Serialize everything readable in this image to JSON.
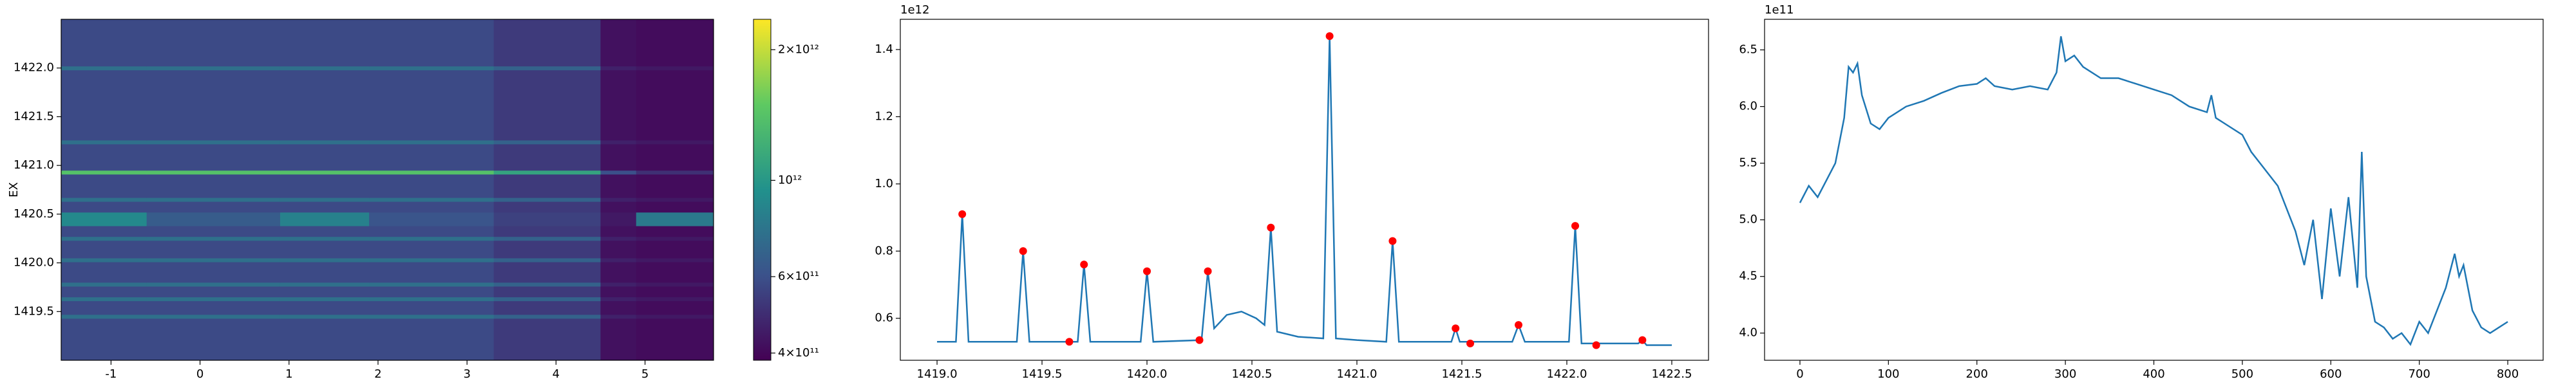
{
  "chart_data": [
    {
      "type": "heatmap",
      "ylabel": "EX",
      "x_edges": [
        -1.56,
        -0.6,
        0.9,
        1.9,
        3.3,
        4.5,
        4.9,
        5.77
      ],
      "y_edges": [
        1419.0,
        1419.43,
        1419.47,
        1419.61,
        1419.65,
        1419.76,
        1419.8,
        1420.01,
        1420.05,
        1420.23,
        1420.27,
        1420.38,
        1420.52,
        1420.63,
        1420.67,
        1420.91,
        1420.95,
        1421.22,
        1421.26,
        1421.98,
        1422.02,
        1422.5
      ],
      "values": [
        [
          580000000000.0,
          580000000000.0,
          580000000000.0,
          580000000000.0,
          530000000000.0,
          420000000000.0,
          410000000000.0
        ],
        [
          750000000000.0,
          750000000000.0,
          750000000000.0,
          750000000000.0,
          680000000000.0,
          460000000000.0,
          440000000000.0
        ],
        [
          580000000000.0,
          580000000000.0,
          580000000000.0,
          580000000000.0,
          530000000000.0,
          420000000000.0,
          410000000000.0
        ],
        [
          750000000000.0,
          750000000000.0,
          750000000000.0,
          750000000000.0,
          680000000000.0,
          460000000000.0,
          440000000000.0
        ],
        [
          580000000000.0,
          580000000000.0,
          580000000000.0,
          580000000000.0,
          530000000000.0,
          420000000000.0,
          410000000000.0
        ],
        [
          750000000000.0,
          750000000000.0,
          750000000000.0,
          750000000000.0,
          680000000000.0,
          460000000000.0,
          440000000000.0
        ],
        [
          580000000000.0,
          580000000000.0,
          580000000000.0,
          580000000000.0,
          530000000000.0,
          420000000000.0,
          410000000000.0
        ],
        [
          750000000000.0,
          750000000000.0,
          750000000000.0,
          750000000000.0,
          680000000000.0,
          460000000000.0,
          440000000000.0
        ],
        [
          580000000000.0,
          580000000000.0,
          580000000000.0,
          580000000000.0,
          530000000000.0,
          420000000000.0,
          410000000000.0
        ],
        [
          750000000000.0,
          750000000000.0,
          750000000000.0,
          750000000000.0,
          680000000000.0,
          460000000000.0,
          440000000000.0
        ],
        [
          580000000000.0,
          580000000000.0,
          580000000000.0,
          580000000000.0,
          530000000000.0,
          420000000000.0,
          410000000000.0
        ],
        [
          900000000000.0,
          650000000000.0,
          850000000000.0,
          620000000000.0,
          550000000000.0,
          440000000000.0,
          800000000000.0
        ],
        [
          580000000000.0,
          580000000000.0,
          580000000000.0,
          580000000000.0,
          530000000000.0,
          420000000000.0,
          410000000000.0
        ],
        [
          750000000000.0,
          750000000000.0,
          750000000000.0,
          750000000000.0,
          680000000000.0,
          460000000000.0,
          440000000000.0
        ],
        [
          580000000000.0,
          580000000000.0,
          580000000000.0,
          580000000000.0,
          530000000000.0,
          420000000000.0,
          410000000000.0
        ],
        [
          1400000000000.0,
          1400000000000.0,
          1400000000000.0,
          1400000000000.0,
          1100000000000.0,
          600000000000.0,
          500000000000.0
        ],
        [
          580000000000.0,
          580000000000.0,
          580000000000.0,
          580000000000.0,
          530000000000.0,
          420000000000.0,
          410000000000.0
        ],
        [
          750000000000.0,
          750000000000.0,
          750000000000.0,
          750000000000.0,
          680000000000.0,
          460000000000.0,
          440000000000.0
        ],
        [
          580000000000.0,
          580000000000.0,
          580000000000.0,
          580000000000.0,
          530000000000.0,
          420000000000.0,
          410000000000.0
        ],
        [
          750000000000.0,
          750000000000.0,
          750000000000.0,
          750000000000.0,
          680000000000.0,
          460000000000.0,
          440000000000.0
        ],
        [
          580000000000.0,
          580000000000.0,
          580000000000.0,
          580000000000.0,
          530000000000.0,
          420000000000.0,
          410000000000.0
        ]
      ],
      "colormap": "viridis",
      "xlim": [
        -1.56,
        5.77
      ],
      "xticks": [
        -1,
        0,
        1,
        2,
        3,
        4,
        5
      ],
      "ylim": [
        1419.0,
        1422.5
      ],
      "yticks": [
        1419.5,
        {
          "value": 1420.0,
          "label": "1420.0"
        },
        1420.5,
        {
          "value": 1421.0,
          "label": "1421.0"
        },
        1421.5,
        {
          "value": 1422.0,
          "label": "1422.0"
        }
      ],
      "colorbar": {
        "scale": "log",
        "clim": [
          385000000000.0,
          2350000000000.0
        ],
        "ticks": [
          {
            "value": 400000000000.0,
            "label": "4×10¹¹"
          },
          {
            "value": 600000000000.0,
            "label": "6×10¹¹"
          },
          {
            "value": 1000000000000.0,
            "label": "10¹²"
          },
          {
            "value": 2000000000000.0,
            "label": "2×10¹²"
          }
        ]
      }
    },
    {
      "type": "line",
      "y_offset_label": "1e12",
      "xlim": [
        1418.825,
        1422.675
      ],
      "xticks": [
        {
          "value": 1419.0,
          "label": "1419.0"
        },
        1419.5,
        {
          "value": 1420.0,
          "label": "1420.0"
        },
        1420.5,
        {
          "value": 1421.0,
          "label": "1421.0"
        },
        1421.5,
        {
          "value": 1422.0,
          "label": "1422.0"
        },
        1422.5
      ],
      "ylim": [
        0.475,
        1.49
      ],
      "yticks": [
        0.6,
        0.8,
        {
          "value": 1,
          "label": "1.0"
        },
        1.2,
        1.4
      ],
      "series": [
        {
          "style": "line",
          "color": "#1f77b4",
          "x": [
            1419.0,
            1419.09,
            1419.12,
            1419.15,
            1419.38,
            1419.41,
            1419.44,
            1419.67,
            1419.7,
            1419.73,
            1419.97,
            1420.0,
            1420.03,
            1420.26,
            1420.29,
            1420.32,
            1420.38,
            1420.45,
            1420.52,
            1420.56,
            1420.59,
            1420.62,
            1420.72,
            1420.84,
            1420.87,
            1420.9,
            1421.0,
            1421.14,
            1421.17,
            1421.2,
            1421.45,
            1421.47,
            1421.49,
            1421.74,
            1421.77,
            1421.8,
            1422.01,
            1422.04,
            1422.07,
            1422.34,
            1422.36,
            1422.38,
            1422.5
          ],
          "values": [
            0.53,
            0.53,
            0.91,
            0.53,
            0.53,
            0.8,
            0.53,
            0.53,
            0.76,
            0.53,
            0.53,
            0.74,
            0.53,
            0.535,
            0.74,
            0.57,
            0.61,
            0.62,
            0.6,
            0.58,
            0.87,
            0.56,
            0.545,
            0.54,
            1.44,
            0.54,
            0.535,
            0.53,
            0.83,
            0.53,
            0.53,
            0.57,
            0.53,
            0.53,
            0.58,
            0.53,
            0.53,
            0.875,
            0.525,
            0.525,
            0.535,
            0.52,
            0.52
          ]
        },
        {
          "style": "markers",
          "color": "#ff0000",
          "x": [
            1419.12,
            1419.41,
            1419.63,
            1419.7,
            1420.0,
            1420.25,
            1420.29,
            1420.59,
            1420.87,
            1421.17,
            1421.47,
            1421.54,
            1421.77,
            1422.04,
            1422.14,
            1422.36
          ],
          "values": [
            0.91,
            0.8,
            0.53,
            0.76,
            0.74,
            0.535,
            0.74,
            0.87,
            1.44,
            0.83,
            0.57,
            0.525,
            0.58,
            0.875,
            0.52,
            0.535
          ]
        }
      ]
    },
    {
      "type": "line",
      "y_offset_label": "1e11",
      "xlim": [
        -40,
        840
      ],
      "xticks": [
        0,
        100,
        200,
        300,
        400,
        500,
        600,
        700,
        800
      ],
      "ylim": [
        3.76,
        6.77
      ],
      "yticks": [
        {
          "value": 4,
          "label": "4.0"
        },
        4.5,
        {
          "value": 5,
          "label": "5.0"
        },
        5.5,
        {
          "value": 6,
          "label": "6.0"
        },
        6.5
      ],
      "series": [
        {
          "style": "line",
          "color": "#1f77b4",
          "x": [
            0,
            10,
            20,
            30,
            40,
            50,
            55,
            60,
            65,
            70,
            80,
            90,
            100,
            120,
            140,
            160,
            180,
            200,
            210,
            220,
            240,
            260,
            280,
            290,
            295,
            300,
            310,
            320,
            340,
            360,
            380,
            400,
            420,
            440,
            460,
            465,
            470,
            480,
            500,
            510,
            520,
            530,
            540,
            550,
            560,
            570,
            580,
            590,
            600,
            610,
            620,
            630,
            635,
            640,
            650,
            660,
            670,
            680,
            690,
            700,
            710,
            720,
            730,
            740,
            745,
            750,
            760,
            770,
            780,
            790,
            800
          ],
          "values": [
            5.15,
            5.3,
            5.2,
            5.35,
            5.5,
            5.9,
            6.35,
            6.3,
            6.38,
            6.1,
            5.85,
            5.8,
            5.9,
            6.0,
            6.05,
            6.12,
            6.18,
            6.2,
            6.25,
            6.18,
            6.15,
            6.18,
            6.15,
            6.3,
            6.62,
            6.4,
            6.45,
            6.35,
            6.25,
            6.25,
            6.2,
            6.15,
            6.1,
            6.0,
            5.95,
            6.1,
            5.9,
            5.85,
            5.75,
            5.6,
            5.5,
            5.4,
            5.3,
            5.1,
            4.9,
            4.6,
            5.0,
            4.3,
            5.1,
            4.5,
            5.2,
            4.4,
            5.6,
            4.5,
            4.1,
            4.05,
            3.95,
            4.0,
            3.9,
            4.1,
            4.0,
            4.2,
            4.4,
            4.7,
            4.5,
            4.6,
            4.2,
            4.05,
            4.0,
            4.05,
            4.1
          ]
        }
      ]
    }
  ]
}
